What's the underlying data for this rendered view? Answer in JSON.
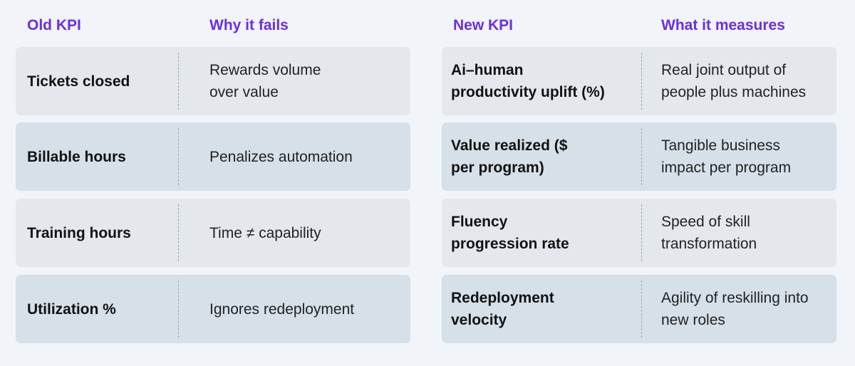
{
  "left": {
    "header_1": "Old KPI",
    "header_2": "Why it fails",
    "rows": [
      {
        "kpi": "Tickets closed",
        "desc": "Rewards volume\nover value"
      },
      {
        "kpi": "Billable hours",
        "desc": "Penalizes automation"
      },
      {
        "kpi": "Training hours",
        "desc": "Time ≠ capability"
      },
      {
        "kpi": "Utilization %",
        "desc": "Ignores redeployment"
      }
    ]
  },
  "right": {
    "header_1": "New KPI",
    "header_2": "What it measures",
    "rows": [
      {
        "kpi": "Ai–human\nproductivity uplift (%)",
        "desc": "Real joint output of\npeople plus machines"
      },
      {
        "kpi": "Value realized ($\nper program)",
        "desc": "Tangible business\nimpact per program"
      },
      {
        "kpi": "Fluency\nprogression rate",
        "desc": "Speed of skill\ntransformation"
      },
      {
        "kpi": "Redeployment\nvelocity",
        "desc": "Agility of reskilling into\nnew roles"
      }
    ]
  },
  "colors": {
    "header": "#6a2ee6",
    "row_light": "#e4e7ec",
    "row_dark": "#d5e0e8",
    "background": "#f1f4f8"
  }
}
